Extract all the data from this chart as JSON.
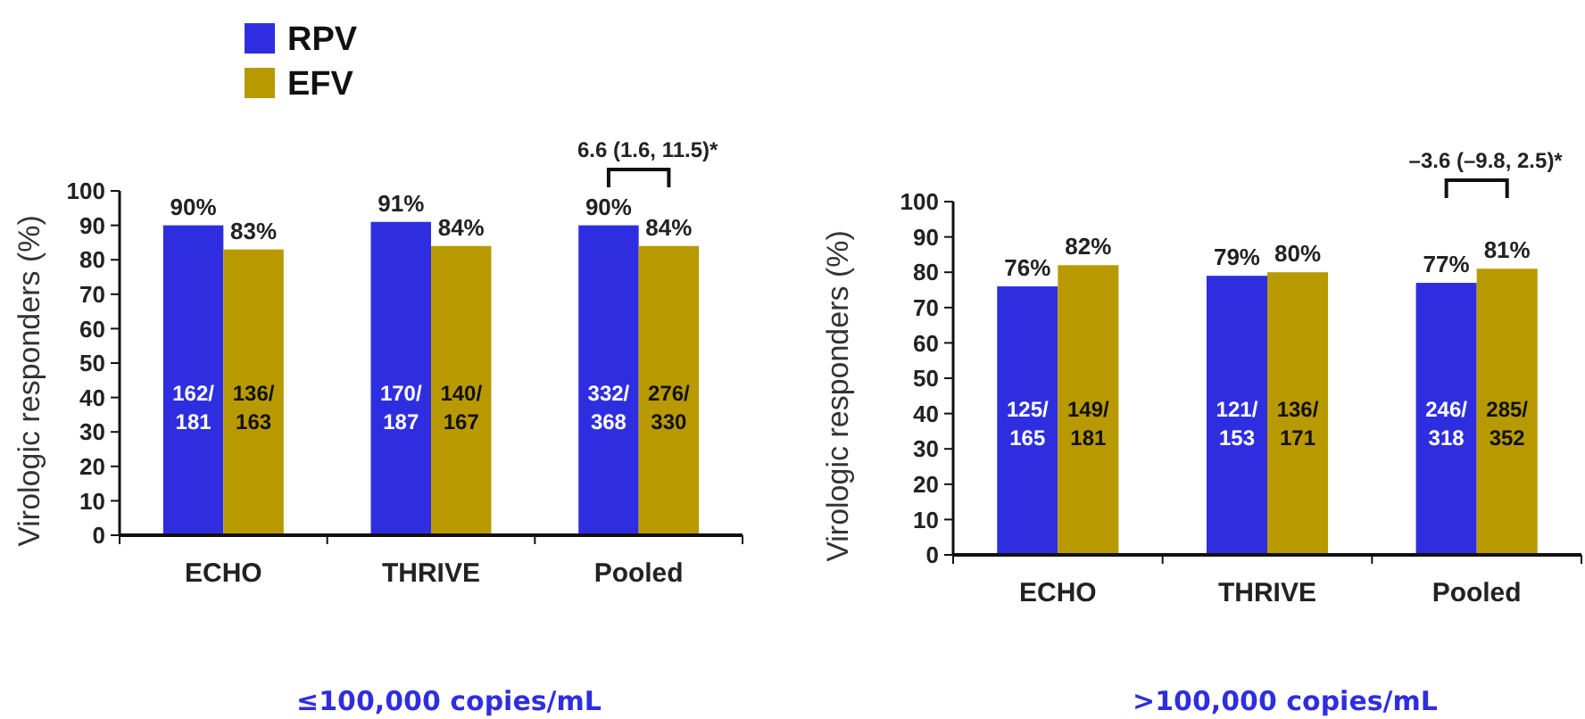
{
  "chart_data": [
    {
      "type": "bar",
      "title": "≤100,000 copies/mL",
      "ylabel": "Virologic responders (%)",
      "categories": [
        "ECHO",
        "THRIVE",
        "Pooled"
      ],
      "series": [
        {
          "name": "RPV",
          "color": "#2e2ee0",
          "values": [
            90,
            91,
            90
          ],
          "value_labels": [
            "90%",
            "91%",
            "90%"
          ]
        },
        {
          "name": "EFV",
          "color": "#b89a00",
          "values": [
            83,
            84,
            84
          ],
          "value_labels": [
            "83%",
            "84%",
            "84%"
          ]
        }
      ],
      "ylim": [
        0,
        100
      ],
      "yticks": [
        0,
        10,
        20,
        30,
        40,
        50,
        60,
        70,
        80,
        90,
        100
      ],
      "legend": "top left",
      "grid": false,
      "annotations": [
        {
          "text": "162/181",
          "x": "ECHO",
          "y": 35
        },
        {
          "text": "136/163",
          "x": "ECHO",
          "y": 35
        },
        {
          "text": "170/187",
          "x": "THRIVE",
          "y": 35
        },
        {
          "text": "140/167",
          "x": "THRIVE",
          "y": 35
        },
        {
          "text": "332/368",
          "x": "Pooled",
          "y": 35
        },
        {
          "text": "276/330",
          "x": "Pooled",
          "y": 35
        },
        "6.6 (1.6, 11.5)*"
      ]
    },
    {
      "type": "bar",
      "title": ">100,000 copies/mL",
      "ylabel": "Virologic responders (%)",
      "categories": [
        "ECHO",
        "THRIVE",
        "Pooled"
      ],
      "series": [
        {
          "color": "#2e2ee0",
          "values": [
            76,
            79,
            77
          ],
          "value_labels": [
            "76%",
            "79%",
            "77%"
          ]
        },
        {
          "color": "#b89a00",
          "values": [
            82,
            80,
            81
          ],
          "value_labels": [
            "82%",
            "80%",
            "81%"
          ]
        }
      ],
      "ylim": [
        0,
        100
      ],
      "yticks": [
        0,
        10,
        20,
        30,
        40,
        50,
        60,
        70,
        80,
        90,
        100
      ],
      "legend": false,
      "grid": false,
      "annotations": [
        {
          "text": "125/165",
          "x": "ECHO",
          "y": 35
        },
        {
          "text": "149/181",
          "x": "ECHO",
          "y": 35
        },
        {
          "text": "121/153",
          "x": "THRIVE",
          "y": 35
        },
        {
          "text": "136/171",
          "x": "THRIVE",
          "y": 35
        },
        {
          "text": "246/318",
          "x": "Pooled",
          "y": 35
        },
        {
          "text": "285/352",
          "x": "Pooled",
          "y": 35
        },
        "–3.6 (–9.8, 2.5)*"
      ]
    }
  ]
}
